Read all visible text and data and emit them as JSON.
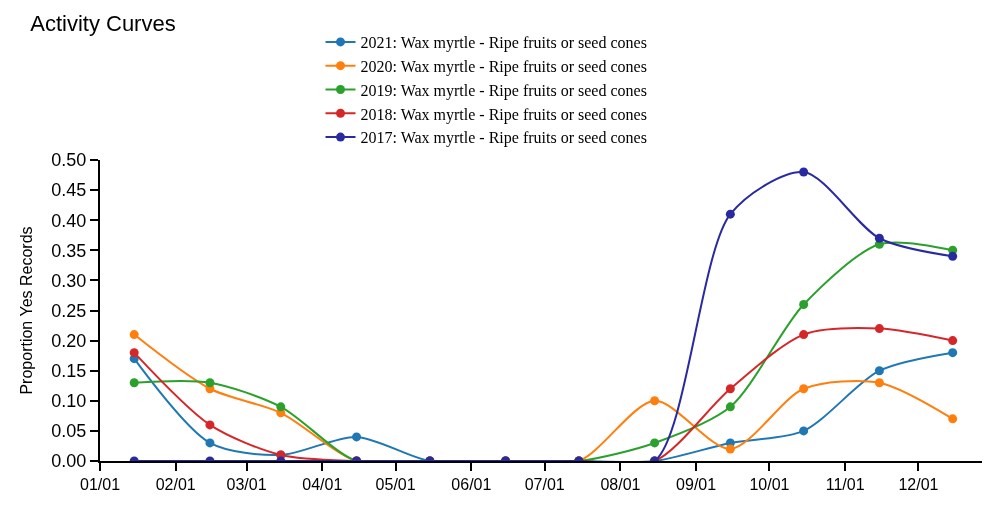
{
  "chart_data": {
    "type": "line",
    "title": "Activity Curves",
    "ylabel": "Proportion Yes Records",
    "x": [
      "--01-15",
      "--02-15",
      "--03-15",
      "--04-15",
      "--05-15",
      "--06-15",
      "--07-15",
      "--08-15",
      "--09-15",
      "--10-15",
      "--11-15",
      "--12-15"
    ],
    "series": [
      {
        "name": "2021: Wax myrtle - Ripe fruits or seed cones",
        "color": "#1f77b4",
        "values": [
          0.17,
          0.03,
          0.01,
          0.04,
          0,
          0,
          0,
          0,
          0.03,
          0.05,
          0.15,
          0.18
        ]
      },
      {
        "name": "2020: Wax myrtle - Ripe fruits or seed cones",
        "color": "#ff7f0e",
        "values": [
          0.21,
          0.12,
          0.08,
          0,
          0,
          0,
          0,
          0.1,
          0.02,
          0.12,
          0.13,
          0.07
        ]
      },
      {
        "name": "2019: Wax myrtle - Ripe fruits or seed cones",
        "color": "#2ca02c",
        "values": [
          0.13,
          0.13,
          0.09,
          0,
          0,
          0,
          0,
          0.03,
          0.09,
          0.26,
          0.36,
          0.35
        ]
      },
      {
        "name": "2018: Wax myrtle - Ripe fruits or seed cones",
        "color": "#d62728",
        "values": [
          0.18,
          0.06,
          0.01,
          0,
          0,
          0,
          0,
          0,
          0.12,
          0.21,
          0.22,
          0.2
        ]
      },
      {
        "name": "2017: Wax myrtle - Ripe fruits or seed cones",
        "color": "#2a2aa0",
        "values": [
          0,
          0,
          0,
          0,
          0,
          0,
          0,
          0,
          0.41,
          0.48,
          0.37,
          0.34
        ]
      }
    ],
    "xlim": [
      "--01-01",
      "--12-27"
    ],
    "xticks": [
      {
        "value": "--01-01",
        "label": "01/01"
      },
      {
        "value": "--02-01",
        "label": "02/01"
      },
      {
        "value": "--03-01",
        "label": "03/01"
      },
      {
        "value": "--04-01",
        "label": "04/01"
      },
      {
        "value": "--05-01",
        "label": "05/01"
      },
      {
        "value": "--06-01",
        "label": "06/01"
      },
      {
        "value": "--07-01",
        "label": "07/01"
      },
      {
        "value": "--08-01",
        "label": "08/01"
      },
      {
        "value": "--09-01",
        "label": "09/01"
      },
      {
        "value": "--10-01",
        "label": "10/01"
      },
      {
        "value": "--11-01",
        "label": "11/01"
      },
      {
        "value": "--12-01",
        "label": "12/01"
      }
    ],
    "ylim": [
      0,
      0.5
    ],
    "yticks": [
      {
        "value": 0,
        "label": "0.00"
      },
      0.05,
      {
        "value": 0.1,
        "label": "0.10"
      },
      0.15,
      {
        "value": 0.2,
        "label": "0.20"
      },
      0.25,
      {
        "value": 0.3,
        "label": "0.30"
      },
      0.35,
      {
        "value": 0.4,
        "label": "0.40"
      },
      0.45,
      {
        "value": 0.5,
        "label": "0.50"
      }
    ],
    "grid": false,
    "legend": "top",
    "marker": "circle",
    "line_style": "solid"
  }
}
